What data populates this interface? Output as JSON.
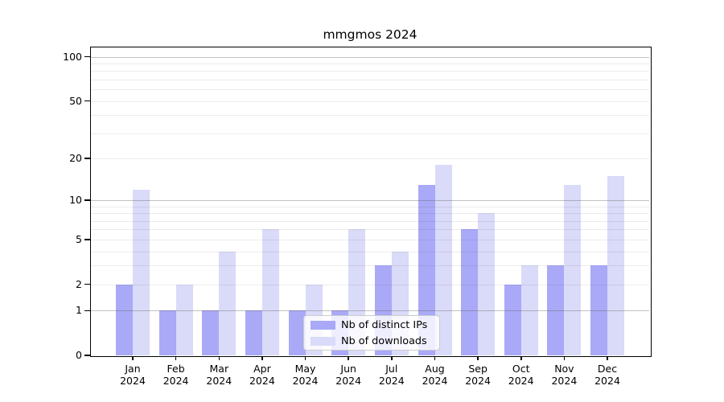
{
  "chart_data": {
    "type": "bar",
    "title": "mmgmos 2024",
    "xlabel": "",
    "ylabel": "",
    "categories": [
      "Jan 2024",
      "Feb 2024",
      "Mar 2024",
      "Apr 2024",
      "May 2024",
      "Jun 2024",
      "Jul 2024",
      "Aug 2024",
      "Sep 2024",
      "Oct 2024",
      "Nov 2024",
      "Dec 2024"
    ],
    "series": [
      {
        "name": "Nb of distinct IPs",
        "color": "#a9a9f7",
        "values": [
          2,
          1,
          1,
          1,
          1,
          1,
          3,
          13,
          6,
          2,
          3,
          3
        ]
      },
      {
        "name": "Nb of downloads",
        "color": "#dadaf9",
        "values": [
          12,
          2,
          4,
          6,
          2,
          6,
          4,
          18,
          8,
          3,
          13,
          15
        ]
      }
    ],
    "y_scale": "log1p",
    "ylim": [
      0,
      115.6
    ],
    "ytick_labels": [
      0,
      1,
      2,
      5,
      10,
      20,
      50,
      100
    ],
    "ygrid_major": [
      1,
      10,
      100
    ],
    "ygrid_minor": [
      2,
      3,
      4,
      5,
      6,
      7,
      8,
      9,
      20,
      30,
      40,
      50,
      60,
      70,
      80,
      90
    ],
    "grid": true,
    "legend_position": "lower-center-inside"
  }
}
